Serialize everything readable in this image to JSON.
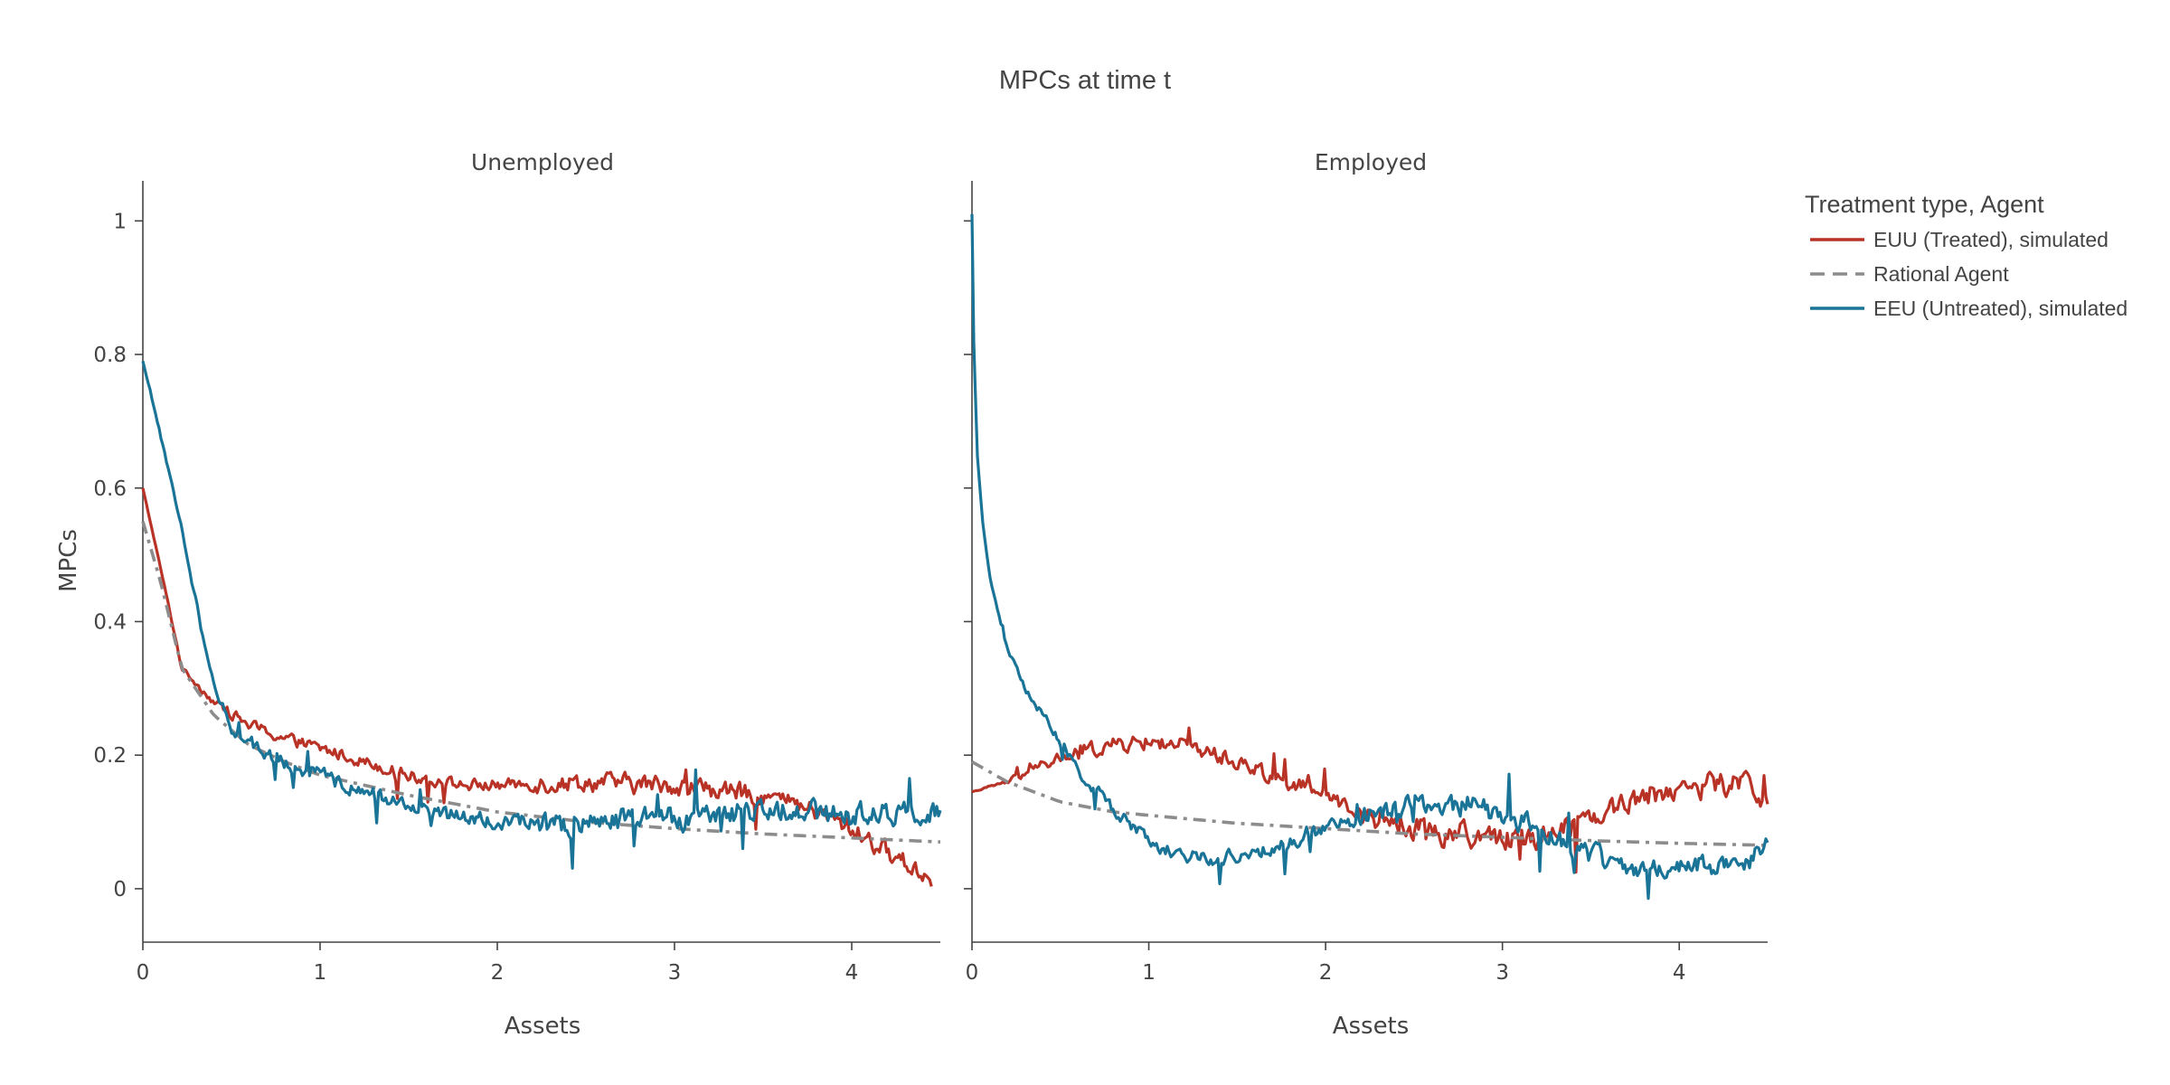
{
  "chart_data": {
    "type": "line",
    "title": "MPCs at time t",
    "ylabel": "MPCs",
    "xlim": [
      0,
      4.5
    ],
    "ylim": [
      -0.08,
      1.06
    ],
    "grid": false,
    "x_ticks": [
      0,
      1,
      2,
      3,
      4
    ],
    "y_ticks": [
      0,
      0.2,
      0.4,
      0.6,
      0.8,
      1
    ],
    "y_tick_labels": [
      "0",
      "0.2",
      "0.4",
      "0.6",
      "0.8",
      "1"
    ],
    "legend": {
      "title": "Treatment type, Agent",
      "placement": "top-right, outside plot",
      "entries": [
        {
          "label": "EUU (Treated), simulated",
          "color": "#b93226",
          "dash": "solid"
        },
        {
          "label": "Rational Agent",
          "color": "#8c8c8c",
          "dash": "dashed"
        },
        {
          "label": "EEU (Untreated), simulated",
          "color": "#1a7497",
          "dash": "solid"
        }
      ]
    },
    "panels": [
      {
        "title": "Unemployed",
        "xlabel": "Assets",
        "series": [
          {
            "name": "EUU (Treated), simulated",
            "color": "#b93226",
            "dash": "solid",
            "noise": 0.014,
            "points": [
              [
                0,
                0.6
              ],
              [
                0.1,
                0.48
              ],
              [
                0.22,
                0.33
              ],
              [
                0.4,
                0.28
              ],
              [
                0.6,
                0.245
              ],
              [
                0.8,
                0.225
              ],
              [
                1.0,
                0.21
              ],
              [
                1.2,
                0.195
              ],
              [
                1.5,
                0.17
              ],
              [
                1.8,
                0.155
              ],
              [
                2.0,
                0.155
              ],
              [
                2.5,
                0.16
              ],
              [
                3.0,
                0.155
              ],
              [
                3.5,
                0.14
              ],
              [
                3.8,
                0.115
              ],
              [
                4.0,
                0.09
              ],
              [
                4.2,
                0.055
              ],
              [
                4.45,
                0.015
              ]
            ]
          },
          {
            "name": "Rational Agent",
            "color": "#8c8c8c",
            "dash": "dashed",
            "noise": 0,
            "points": [
              [
                0,
                0.55
              ],
              [
                0.1,
                0.46
              ],
              [
                0.22,
                0.33
              ],
              [
                0.4,
                0.26
              ],
              [
                0.6,
                0.215
              ],
              [
                0.8,
                0.19
              ],
              [
                1.0,
                0.17
              ],
              [
                1.5,
                0.14
              ],
              [
                2.0,
                0.115
              ],
              [
                2.5,
                0.1
              ],
              [
                3.0,
                0.09
              ],
              [
                3.5,
                0.082
              ],
              [
                4.0,
                0.076
              ],
              [
                4.5,
                0.07
              ]
            ]
          },
          {
            "name": "EEU (Untreated), simulated",
            "color": "#1a7497",
            "dash": "solid",
            "noise": 0.018,
            "points": [
              [
                0,
                0.79
              ],
              [
                0.1,
                0.68
              ],
              [
                0.2,
                0.56
              ],
              [
                0.3,
                0.43
              ],
              [
                0.4,
                0.3
              ],
              [
                0.5,
                0.24
              ],
              [
                0.7,
                0.2
              ],
              [
                1.0,
                0.17
              ],
              [
                1.3,
                0.14
              ],
              [
                1.6,
                0.115
              ],
              [
                2.0,
                0.1
              ],
              [
                2.5,
                0.095
              ],
              [
                3.0,
                0.105
              ],
              [
                3.5,
                0.12
              ],
              [
                4.0,
                0.11
              ],
              [
                4.3,
                0.11
              ],
              [
                4.5,
                0.12
              ]
            ]
          }
        ]
      },
      {
        "title": "Employed",
        "xlabel": "Assets",
        "series": [
          {
            "name": "EUU (Treated), simulated",
            "color": "#b93226",
            "dash": "solid",
            "noise": 0.018,
            "points": [
              [
                0,
                0.145
              ],
              [
                0.2,
                0.16
              ],
              [
                0.4,
                0.185
              ],
              [
                0.6,
                0.205
              ],
              [
                0.8,
                0.215
              ],
              [
                1.0,
                0.22
              ],
              [
                1.2,
                0.215
              ],
              [
                1.4,
                0.2
              ],
              [
                1.6,
                0.18
              ],
              [
                1.8,
                0.16
              ],
              [
                2.0,
                0.14
              ],
              [
                2.2,
                0.115
              ],
              [
                2.4,
                0.1
              ],
              [
                2.6,
                0.085
              ],
              [
                2.8,
                0.08
              ],
              [
                3.0,
                0.075
              ],
              [
                3.2,
                0.08
              ],
              [
                3.4,
                0.1
              ],
              [
                3.6,
                0.12
              ],
              [
                3.8,
                0.14
              ],
              [
                4.0,
                0.15
              ],
              [
                4.2,
                0.155
              ],
              [
                4.4,
                0.16
              ],
              [
                4.5,
                0.13
              ]
            ]
          },
          {
            "name": "Rational Agent",
            "color": "#8c8c8c",
            "dash": "dashed",
            "noise": 0,
            "points": [
              [
                0,
                0.19
              ],
              [
                0.2,
                0.16
              ],
              [
                0.5,
                0.13
              ],
              [
                0.8,
                0.115
              ],
              [
                1.0,
                0.11
              ],
              [
                1.5,
                0.098
              ],
              [
                2.0,
                0.09
              ],
              [
                2.5,
                0.082
              ],
              [
                3.0,
                0.077
              ],
              [
                3.5,
                0.072
              ],
              [
                4.0,
                0.068
              ],
              [
                4.5,
                0.065
              ]
            ]
          },
          {
            "name": "EEU (Untreated), simulated",
            "color": "#1a7497",
            "dash": "solid",
            "noise": 0.016,
            "points": [
              [
                0,
                1.01
              ],
              [
                0.01,
                0.82
              ],
              [
                0.03,
                0.65
              ],
              [
                0.06,
                0.55
              ],
              [
                0.1,
                0.47
              ],
              [
                0.15,
                0.41
              ],
              [
                0.2,
                0.36
              ],
              [
                0.3,
                0.3
              ],
              [
                0.4,
                0.26
              ],
              [
                0.5,
                0.22
              ],
              [
                0.6,
                0.18
              ],
              [
                0.8,
                0.12
              ],
              [
                1.0,
                0.07
              ],
              [
                1.2,
                0.05
              ],
              [
                1.4,
                0.045
              ],
              [
                1.6,
                0.055
              ],
              [
                1.8,
                0.07
              ],
              [
                2.0,
                0.09
              ],
              [
                2.2,
                0.105
              ],
              [
                2.4,
                0.12
              ],
              [
                2.6,
                0.13
              ],
              [
                2.8,
                0.125
              ],
              [
                3.0,
                0.11
              ],
              [
                3.2,
                0.09
              ],
              [
                3.4,
                0.065
              ],
              [
                3.6,
                0.04
              ],
              [
                3.8,
                0.03
              ],
              [
                4.0,
                0.035
              ],
              [
                4.2,
                0.035
              ],
              [
                4.4,
                0.04
              ],
              [
                4.5,
                0.065
              ]
            ]
          }
        ]
      }
    ]
  }
}
